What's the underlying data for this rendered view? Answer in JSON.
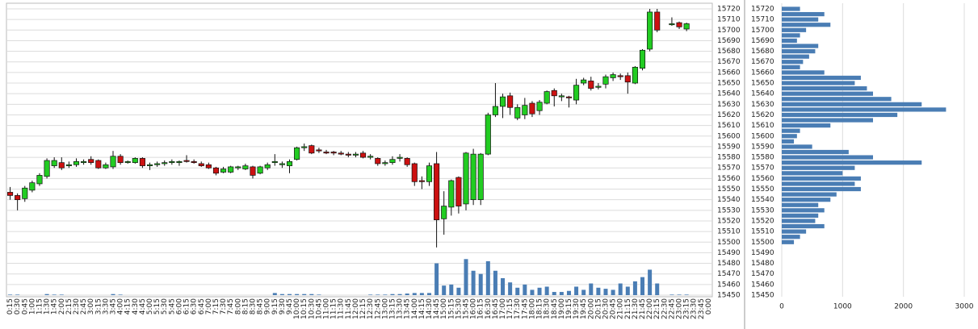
{
  "chart_data": [
    {
      "type": "candlestick",
      "categories": [
        "0:15",
        "0:30",
        "0:45",
        "1:00",
        "1:15",
        "1:30",
        "1:45",
        "2:00",
        "2:15",
        "2:30",
        "2:45",
        "3:00",
        "3:15",
        "3:30",
        "3:45",
        "4:00",
        "4:15",
        "4:30",
        "4:45",
        "5:00",
        "5:15",
        "5:30",
        "5:45",
        "6:00",
        "6:15",
        "6:30",
        "6:45",
        "7:00",
        "7:15",
        "7:30",
        "7:45",
        "8:00",
        "8:15",
        "8:30",
        "8:45",
        "9:00",
        "9:15",
        "9:30",
        "9:45",
        "10:00",
        "10:15",
        "10:30",
        "10:45",
        "11:00",
        "11:15",
        "11:30",
        "11:45",
        "12:00",
        "12:15",
        "12:30",
        "12:45",
        "13:00",
        "13:15",
        "13:30",
        "13:45",
        "14:00",
        "14:15",
        "14:30",
        "14:45",
        "15:00",
        "15:15",
        "15:30",
        "15:45",
        "16:00",
        "16:15",
        "16:30",
        "16:45",
        "17:00",
        "17:15",
        "17:30",
        "17:45",
        "18:00",
        "18:15",
        "18:30",
        "18:45",
        "19:00",
        "19:15",
        "19:30",
        "19:45",
        "20:00",
        "20:15",
        "20:30",
        "20:45",
        "21:00",
        "21:15",
        "21:30",
        "21:45",
        "22:00",
        "22:15",
        "22:30",
        "22:45",
        "23:00",
        "23:15",
        "23:30",
        "23:45",
        "0:00"
      ],
      "open": [
        15547,
        15544,
        15541,
        15549,
        15555,
        15562,
        15572,
        15575,
        15572,
        15573,
        15575,
        15578,
        15577,
        15570,
        15571,
        15581,
        15575,
        15575,
        15579,
        15572,
        15573,
        15574,
        15575,
        15575,
        15577,
        15576,
        15574,
        15573,
        15570,
        15566,
        15566,
        15570,
        15569,
        15571,
        15565,
        15570,
        15575,
        15573,
        15572,
        15578,
        15589,
        15591,
        15587,
        15585,
        15585,
        15584,
        15583,
        15582,
        15584,
        15580,
        15579,
        15574,
        15575,
        15579,
        15579,
        15574,
        15558,
        15557,
        15574,
        15522,
        15533,
        15561,
        15536,
        15540,
        15540,
        15583,
        15620,
        15628,
        15638,
        15617,
        15620,
        15631,
        15624,
        15631,
        15643,
        15637,
        15637,
        15634,
        15650,
        15652,
        15646,
        15649,
        15655,
        15657,
        15657,
        15650,
        15664,
        15682,
        15717,
        null,
        15705,
        15707,
        15701,
        null,
        null,
        null
      ],
      "high": [
        15552,
        15546,
        15553,
        15558,
        15565,
        15579,
        15580,
        15580,
        15576,
        15579,
        15578,
        15581,
        15578,
        15575,
        15586,
        15583,
        15577,
        15580,
        15580,
        15575,
        15576,
        15577,
        15578,
        15577,
        15582,
        15578,
        15576,
        15575,
        15571,
        15571,
        15572,
        15572,
        15574,
        15572,
        15572,
        15575,
        15583,
        15576,
        15578,
        15590,
        15593,
        15592,
        15589,
        15587,
        15586,
        15586,
        15585,
        15585,
        15586,
        15583,
        15580,
        15577,
        15581,
        15583,
        15580,
        15575,
        15562,
        15575,
        15585,
        15548,
        15559,
        15562,
        15585,
        15588,
        15584,
        15622,
        15650,
        15640,
        15641,
        15630,
        15636,
        15633,
        15634,
        15643,
        15645,
        15640,
        15638,
        15654,
        15655,
        15656,
        15650,
        15658,
        15660,
        15659,
        15660,
        15666,
        15682,
        15720,
        15720,
        null,
        15712,
        15708,
        15707,
        null,
        null,
        null
      ],
      "low": [
        15540,
        15530,
        15538,
        15547,
        15553,
        15560,
        15570,
        15568,
        15570,
        15571,
        15573,
        15573,
        15569,
        15569,
        15569,
        15573,
        15574,
        15574,
        15570,
        15568,
        15571,
        15572,
        15573,
        15572,
        15575,
        15574,
        15571,
        15569,
        15563,
        15565,
        15565,
        15568,
        15568,
        15560,
        15564,
        15568,
        15572,
        15570,
        15565,
        15577,
        15586,
        15583,
        15584,
        15583,
        15582,
        15582,
        15580,
        15580,
        15579,
        15578,
        15572,
        15572,
        15573,
        15576,
        15571,
        15553,
        15550,
        15553,
        15495,
        15507,
        15525,
        15527,
        15530,
        15535,
        15535,
        15582,
        15618,
        15617,
        15620,
        15615,
        15616,
        15618,
        15620,
        15630,
        15628,
        15633,
        15627,
        15630,
        15648,
        15643,
        15644,
        15645,
        15652,
        15653,
        15640,
        15649,
        15662,
        15680,
        15698,
        null,
        15704,
        15701,
        15699,
        null,
        null,
        null
      ],
      "close": [
        15544,
        15540,
        15551,
        15556,
        15563,
        15577,
        15577,
        15570,
        15573,
        15576,
        15576,
        15575,
        15570,
        15573,
        15581,
        15575,
        15576,
        15579,
        15572,
        15573,
        15574,
        15575,
        15576,
        15576,
        15576,
        15575,
        15572,
        15570,
        15565,
        15569,
        15571,
        15571,
        15572,
        15563,
        15571,
        15573,
        15576,
        15574,
        15576,
        15589,
        15590,
        15584,
        15586,
        15584,
        15584,
        15583,
        15582,
        15583,
        15580,
        15581,
        15574,
        15575,
        15578,
        15580,
        15573,
        15557,
        15557,
        15572,
        15521,
        15534,
        15558,
        15534,
        15584,
        15583,
        15583,
        15620,
        15628,
        15637,
        15627,
        15627,
        15629,
        15621,
        15632,
        15642,
        15638,
        15638,
        15636,
        15648,
        15653,
        15645,
        15647,
        15656,
        15658,
        15656,
        15651,
        15665,
        15681,
        15717,
        15700,
        null,
        15706,
        15703,
        15706,
        null,
        null,
        null
      ],
      "volume": {
        "color": "#4a7db4",
        "values": [
          0.5,
          0.5,
          0,
          0,
          0,
          1,
          0.5,
          0.5,
          0,
          0,
          0,
          0,
          0,
          0,
          1,
          0.5,
          0,
          0,
          0,
          0,
          0,
          0,
          0,
          0,
          0,
          0,
          0,
          0,
          0,
          0,
          0,
          0,
          0,
          0,
          0,
          0,
          2,
          1,
          1,
          1,
          1,
          1,
          0.5,
          0,
          0,
          0,
          0,
          0,
          0,
          0.5,
          0.5,
          0.5,
          1,
          1,
          1.5,
          2,
          2,
          2,
          30,
          9,
          10,
          7,
          34,
          23,
          20,
          32,
          23,
          16,
          12,
          7,
          10,
          5,
          7,
          8,
          3,
          3,
          4,
          8,
          5,
          11,
          7,
          6,
          5,
          11,
          8,
          13,
          17,
          24,
          11,
          null,
          0.5,
          0.5,
          0.5,
          null,
          null,
          null
        ]
      },
      "up_color": "#22cc22",
      "down_color": "#cc1111",
      "ylim": [
        15450,
        15720
      ],
      "yticks": [
        15450,
        15460,
        15470,
        15480,
        15490,
        15500,
        15510,
        15520,
        15530,
        15540,
        15550,
        15560,
        15570,
        15580,
        15590,
        15600,
        15610,
        15620,
        15630,
        15640,
        15650,
        15660,
        15670,
        15680,
        15690,
        15700,
        15710,
        15720
      ],
      "grid": true
    },
    {
      "type": "hbar",
      "y": [
        15720,
        15715,
        15710,
        15705,
        15700,
        15695,
        15690,
        15685,
        15680,
        15675,
        15670,
        15665,
        15660,
        15655,
        15650,
        15645,
        15640,
        15635,
        15630,
        15625,
        15620,
        15615,
        15610,
        15605,
        15600,
        15595,
        15590,
        15585,
        15580,
        15575,
        15570,
        15565,
        15560,
        15555,
        15550,
        15545,
        15540,
        15535,
        15530,
        15525,
        15520,
        15515,
        15510,
        15505,
        15500
      ],
      "values": [
        300,
        700,
        600,
        800,
        400,
        300,
        250,
        600,
        550,
        450,
        350,
        300,
        700,
        1300,
        1200,
        1400,
        1500,
        1800,
        2300,
        2700,
        1900,
        1500,
        800,
        300,
        250,
        200,
        500,
        1100,
        1500,
        2300,
        1200,
        1000,
        1300,
        1200,
        1300,
        900,
        800,
        600,
        700,
        600,
        550,
        700,
        400,
        300,
        200
      ],
      "color": "#4a7db4",
      "xlim": [
        0,
        3000
      ],
      "xticks": [
        0,
        1000,
        2000,
        3000
      ],
      "ylim": [
        15450,
        15720
      ],
      "yticks": [
        15450,
        15460,
        15470,
        15480,
        15490,
        15500,
        15510,
        15520,
        15530,
        15540,
        15550,
        15560,
        15570,
        15580,
        15590,
        15600,
        15610,
        15620,
        15630,
        15640,
        15650,
        15660,
        15670,
        15680,
        15690,
        15700,
        15710,
        15720
      ],
      "grid": true
    }
  ]
}
